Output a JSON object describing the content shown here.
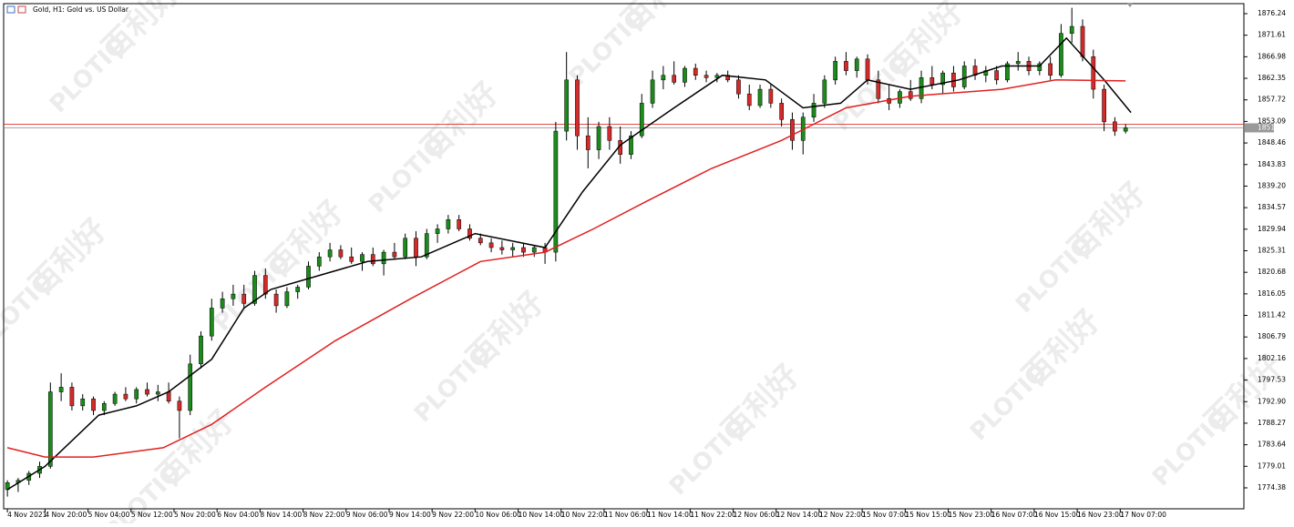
{
  "chart_data": {
    "type": "candlestick",
    "title": "Gold, H1:  Gold vs. US Dollar",
    "watermark": "百利好",
    "watermark_logo": "PLOTIO",
    "up_color": "#1b8c1b",
    "down_color": "#d42a2a",
    "xlim": [
      -0.7,
      230
    ],
    "ylim": [
      1769.88,
      1878.39
    ],
    "yticks": [
      1774.38,
      1779.01,
      1783.64,
      1788.27,
      {
        "value": 1792.9,
        "label": "1792.90"
      },
      1797.53,
      1802.16,
      1806.79,
      1811.42,
      1816.05,
      1820.68,
      1825.31,
      1829.94,
      1834.57,
      {
        "value": 1839.2,
        "label": "1839.20"
      },
      1843.83,
      1848.46,
      1853.09,
      1857.72,
      1862.35,
      1866.98,
      1871.61,
      1876.24
    ],
    "xticks": [
      {
        "value": 0,
        "label": "4 Nov 2021"
      },
      {
        "value": 7,
        "label": "4 Nov 20:00"
      },
      {
        "value": 15,
        "label": "5 Nov 04:00"
      },
      {
        "value": 23,
        "label": "5 Nov 12:00"
      },
      {
        "value": 31,
        "label": "5 Nov 20:00"
      },
      {
        "value": 39,
        "label": "6 Nov 04:00"
      },
      {
        "value": 47,
        "label": "8 Nov 14:00"
      },
      {
        "value": 55,
        "label": "8 Nov 22:00"
      },
      {
        "value": 63,
        "label": "9 Nov 06:00"
      },
      {
        "value": 71,
        "label": "9 Nov 14:00"
      },
      {
        "value": 79,
        "label": "9 Nov 22:00"
      },
      {
        "value": 87,
        "label": "10 Nov 06:00"
      },
      {
        "value": 95,
        "label": "10 Nov 14:00"
      },
      {
        "value": 103,
        "label": "10 Nov 22:00"
      },
      {
        "value": 111,
        "label": "11 Nov 06:00"
      },
      {
        "value": 119,
        "label": "11 Nov 14:00"
      },
      {
        "value": 127,
        "label": "11 Nov 22:00"
      },
      {
        "value": 135,
        "label": "12 Nov 06:00"
      },
      {
        "value": 143,
        "label": "12 Nov 14:00"
      },
      {
        "value": 151,
        "label": "12 Nov 22:00"
      },
      {
        "value": 159,
        "label": "15 Nov 07:00"
      },
      {
        "value": 167,
        "label": "15 Nov 15:00"
      },
      {
        "value": 175,
        "label": "15 Nov 23:00"
      },
      {
        "value": 183,
        "label": "16 Nov 07:00"
      },
      {
        "value": 191,
        "label": "16 Nov 15:00"
      },
      {
        "value": 199,
        "label": "16 Nov 23:00"
      },
      {
        "value": 207,
        "label": "17 Nov 07:00"
      }
    ],
    "bid": 1851.71,
    "bid_color": "#999999",
    "ask_line": 1852.5,
    "ask_color": "#e03030",
    "x": [
      0,
      2,
      4,
      6,
      8,
      10,
      12,
      14,
      16,
      18,
      20,
      22,
      24,
      26,
      28,
      30,
      32,
      34,
      36,
      38,
      40,
      42,
      44,
      46,
      48,
      50,
      52,
      54,
      56,
      58,
      60,
      62,
      64,
      66,
      68,
      70,
      72,
      74,
      76,
      78,
      80,
      82,
      84,
      86,
      88,
      90,
      92,
      94,
      96,
      98,
      100,
      102,
      104,
      106,
      108,
      110,
      112,
      114,
      116,
      118,
      120,
      122,
      124,
      126,
      128,
      130,
      132,
      134,
      136,
      138,
      140,
      142,
      144,
      146,
      148,
      150,
      152,
      154,
      156,
      158,
      160,
      162,
      164,
      166,
      168,
      170,
      172,
      174,
      176,
      178,
      180,
      182,
      184,
      186,
      188,
      190,
      192,
      194,
      196,
      198,
      200,
      202,
      204,
      206,
      208
    ],
    "ohlc": [
      [
        1774,
        1776,
        1772.5,
        1775.5
      ],
      [
        1775.5,
        1776.5,
        1773.5,
        1776
      ],
      [
        1776,
        1778,
        1775,
        1777.5
      ],
      [
        1777.5,
        1780,
        1776.5,
        1779
      ],
      [
        1779,
        1797,
        1778.5,
        1795
      ],
      [
        1795,
        1799,
        1793,
        1796
      ],
      [
        1796,
        1797,
        1791,
        1792
      ],
      [
        1792,
        1794.5,
        1791,
        1793.5
      ],
      [
        1793.5,
        1794,
        1790,
        1791
      ],
      [
        1791,
        1793,
        1790,
        1792.5
      ],
      [
        1792.5,
        1795,
        1792,
        1794.5
      ],
      [
        1794.5,
        1796,
        1793,
        1793.5
      ],
      [
        1793.5,
        1796,
        1792.5,
        1795.5
      ],
      [
        1795.5,
        1797,
        1794,
        1794.5
      ],
      [
        1794.5,
        1796.5,
        1793,
        1795
      ],
      [
        1795,
        1797,
        1792.5,
        1793
      ],
      [
        1793,
        1794,
        1785,
        1791
      ],
      [
        1791,
        1803,
        1790,
        1801
      ],
      [
        1801,
        1808,
        1800,
        1807
      ],
      [
        1807,
        1815,
        1806,
        1813
      ],
      [
        1813,
        1816.5,
        1812,
        1815
      ],
      [
        1815,
        1818,
        1813.5,
        1816
      ],
      [
        1816,
        1818,
        1813,
        1814
      ],
      [
        1814,
        1821,
        1813.5,
        1820
      ],
      [
        1820,
        1821.5,
        1815,
        1816
      ],
      [
        1816,
        1817,
        1812,
        1813.5
      ],
      [
        1813.5,
        1817.5,
        1813,
        1816.5
      ],
      [
        1816.5,
        1818,
        1815,
        1817.5
      ],
      [
        1817.5,
        1823,
        1817,
        1822
      ],
      [
        1822,
        1825,
        1821,
        1824
      ],
      [
        1824,
        1827,
        1823,
        1825.5
      ],
      [
        1825.5,
        1826.5,
        1823.5,
        1824
      ],
      [
        1824,
        1826,
        1822.5,
        1823
      ],
      [
        1823,
        1825,
        1821,
        1824.5
      ],
      [
        1824.5,
        1826,
        1822,
        1822.5
      ],
      [
        1822.5,
        1825.5,
        1820,
        1825
      ],
      [
        1825,
        1827,
        1823.5,
        1824
      ],
      [
        1824,
        1829,
        1823.5,
        1828
      ],
      [
        1828,
        1829.5,
        1822,
        1824
      ],
      [
        1824,
        1830,
        1823.5,
        1829
      ],
      [
        1829,
        1831,
        1827,
        1830
      ],
      [
        1830,
        1833,
        1829,
        1832
      ],
      [
        1832,
        1833,
        1829.5,
        1830
      ],
      [
        1830,
        1831,
        1827.5,
        1828
      ],
      [
        1828,
        1829,
        1826.5,
        1827
      ],
      [
        1827,
        1828,
        1825,
        1826
      ],
      [
        1826,
        1827.5,
        1824.5,
        1825.5
      ],
      [
        1825.5,
        1827,
        1824,
        1826
      ],
      [
        1826,
        1827,
        1824,
        1825
      ],
      [
        1825,
        1826.5,
        1824,
        1826
      ],
      [
        1826,
        1827,
        1822.5,
        1825
      ],
      [
        1825,
        1853,
        1823,
        1851
      ],
      [
        1851,
        1868,
        1849,
        1862
      ],
      [
        1862,
        1863,
        1847,
        1850
      ],
      [
        1850,
        1854,
        1843,
        1847
      ],
      [
        1847,
        1853,
        1845,
        1852
      ],
      [
        1852,
        1854,
        1847,
        1849
      ],
      [
        1849,
        1852,
        1844,
        1846
      ],
      [
        1846,
        1851,
        1845,
        1850
      ],
      [
        1850,
        1859,
        1849.5,
        1857
      ],
      [
        1857,
        1864,
        1856,
        1862
      ],
      [
        1862,
        1865,
        1860,
        1863
      ],
      [
        1863,
        1866,
        1861,
        1861.5
      ],
      [
        1861.5,
        1865,
        1860.5,
        1864.5
      ],
      [
        1864.5,
        1865.5,
        1862,
        1863
      ],
      [
        1863,
        1864,
        1861.5,
        1862.5
      ],
      [
        1862.5,
        1863.5,
        1861.5,
        1863
      ],
      [
        1863,
        1864,
        1861.5,
        1862
      ],
      [
        1862,
        1863,
        1858,
        1859
      ],
      [
        1859,
        1861,
        1855.5,
        1856.5
      ],
      [
        1856.5,
        1861,
        1856,
        1860
      ],
      [
        1860,
        1861,
        1856,
        1857
      ],
      [
        1857,
        1858,
        1852,
        1853.5
      ],
      [
        1853.5,
        1855,
        1847,
        1849
      ],
      [
        1849,
        1855,
        1846,
        1854
      ],
      [
        1854,
        1859,
        1853,
        1857
      ],
      [
        1857,
        1863,
        1856,
        1862
      ],
      [
        1862,
        1867,
        1861,
        1866
      ],
      [
        1866,
        1868,
        1863,
        1864
      ],
      [
        1864,
        1867,
        1862.5,
        1866.5
      ],
      [
        1866.5,
        1867.5,
        1861,
        1862
      ],
      [
        1862,
        1864,
        1857,
        1858
      ],
      [
        1858,
        1861,
        1855.5,
        1857
      ],
      [
        1857,
        1860,
        1856,
        1859.5
      ],
      [
        1859.5,
        1862,
        1857.5,
        1858
      ],
      [
        1858,
        1864,
        1857,
        1862.5
      ],
      [
        1862.5,
        1865,
        1860,
        1861
      ],
      [
        1861,
        1864,
        1859,
        1863.5
      ],
      [
        1863.5,
        1865,
        1859.5,
        1860.5
      ],
      [
        1860.5,
        1866,
        1860,
        1865
      ],
      [
        1865,
        1866.5,
        1862,
        1863
      ],
      [
        1863,
        1865,
        1861.5,
        1864
      ],
      [
        1864,
        1865,
        1861,
        1862
      ],
      [
        1862,
        1866,
        1861.5,
        1865.5
      ],
      [
        1865.5,
        1868,
        1864,
        1866
      ],
      [
        1866,
        1867,
        1863,
        1864
      ],
      [
        1864,
        1866,
        1863,
        1865.5
      ],
      [
        1865.5,
        1867,
        1862,
        1863
      ],
      [
        1863,
        1874,
        1862.5,
        1872
      ],
      [
        1872,
        1877.5,
        1870,
        1873.5
      ],
      [
        1873.5,
        1875,
        1866,
        1867
      ],
      [
        1867,
        1868.5,
        1858,
        1860
      ],
      [
        1860,
        1861,
        1851,
        1853
      ],
      [
        1853,
        1854,
        1850,
        1851
      ],
      [
        1851,
        1852.5,
        1850.5,
        1851.7
      ]
    ],
    "lines": [
      {
        "color": "#000000",
        "x": [
          0,
          7,
          17,
          24,
          30,
          38,
          44,
          49,
          58,
          67,
          77,
          87,
          100,
          107,
          114,
          124,
          133,
          141,
          148,
          155,
          160,
          168,
          177,
          185,
          192,
          197,
          204,
          209
        ],
        "values": [
          1774,
          1779,
          1790,
          1792,
          1795,
          1802,
          1813,
          1817,
          1820,
          1823,
          1824,
          1829,
          1826,
          1838,
          1848,
          1856,
          1863,
          1862,
          1856,
          1857,
          1862,
          1860,
          1862,
          1865,
          1865,
          1871,
          1862,
          1855
        ]
      },
      {
        "color": "#e02020",
        "x": [
          0,
          7,
          16,
          29,
          38,
          48,
          61,
          75,
          88,
          100,
          109,
          119,
          131,
          144,
          156,
          168,
          185,
          195,
          208
        ],
        "values": [
          1783,
          1781,
          1781,
          1783,
          1788,
          1796,
          1806,
          1815,
          1823,
          1825,
          1830,
          1836,
          1843,
          1849,
          1856,
          1858.5,
          1860,
          1862,
          1861.8
        ]
      }
    ]
  }
}
